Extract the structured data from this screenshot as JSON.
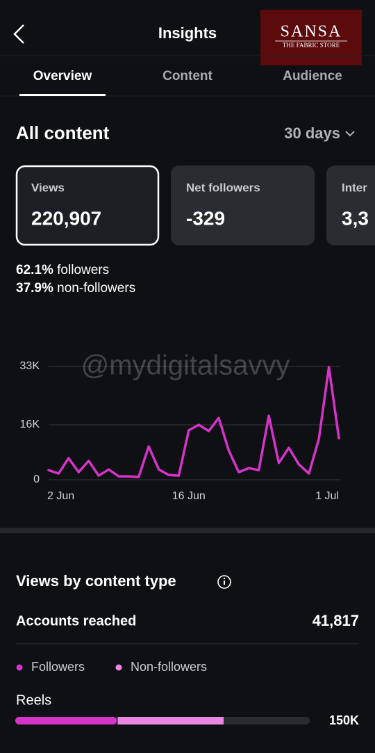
{
  "header": {
    "title": "Insights",
    "logo": {
      "name": "SANSA",
      "tagline": "THE FABRIC STORE"
    }
  },
  "tabs": [
    "Overview",
    "Content",
    "Audience"
  ],
  "section": {
    "title": "All content",
    "period": "30 days"
  },
  "cards": [
    {
      "label": "Views",
      "value": "220,907"
    },
    {
      "label": "Net followers",
      "value": "-329"
    },
    {
      "label": "Inter",
      "value": "3,3"
    }
  ],
  "breakdown": [
    {
      "percent": "62.1%",
      "label": "followers"
    },
    {
      "percent": "37.9%",
      "label": "non-followers"
    }
  ],
  "watermark": "@mydigitalsavvy",
  "content_type": {
    "title": "Views by content type",
    "metric": "Accounts reached",
    "metric_value": "41,817"
  },
  "chart_data": [
    {
      "type": "line",
      "color": "#d633c8",
      "categories": [
        "2 Jun",
        null,
        null,
        null,
        null,
        null,
        null,
        null,
        null,
        null,
        null,
        null,
        null,
        null,
        "16 Jun",
        null,
        null,
        null,
        null,
        null,
        null,
        null,
        null,
        null,
        null,
        null,
        null,
        null,
        null,
        "1 Jul"
      ],
      "values": [
        2800,
        1800,
        6300,
        2200,
        5500,
        1200,
        3000,
        1000,
        1000,
        800,
        9700,
        3000,
        1400,
        1200,
        14400,
        16000,
        14200,
        18000,
        8500,
        2200,
        3400,
        2800,
        18600,
        4900,
        9300,
        4500,
        1800,
        11900,
        32800,
        12100
      ],
      "ylim": [
        0,
        33000
      ],
      "yticks": [
        0,
        {
          "value": 16000,
          "label": "16K"
        },
        {
          "value": 33000,
          "label": "33K"
        }
      ],
      "grid": true
    },
    {
      "type": "bar",
      "orientation": "horizontal",
      "stacked": true,
      "categories": [
        "Reels"
      ],
      "series": [
        {
          "name": "Followers",
          "color": "#d633c8",
          "values": [
            73000
          ]
        },
        {
          "name": "Non-followers",
          "color": "#ec86e3",
          "values": [
            77000
          ]
        }
      ],
      "total_labels": [
        "150K"
      ],
      "xlim": [
        0,
        212000
      ]
    }
  ]
}
